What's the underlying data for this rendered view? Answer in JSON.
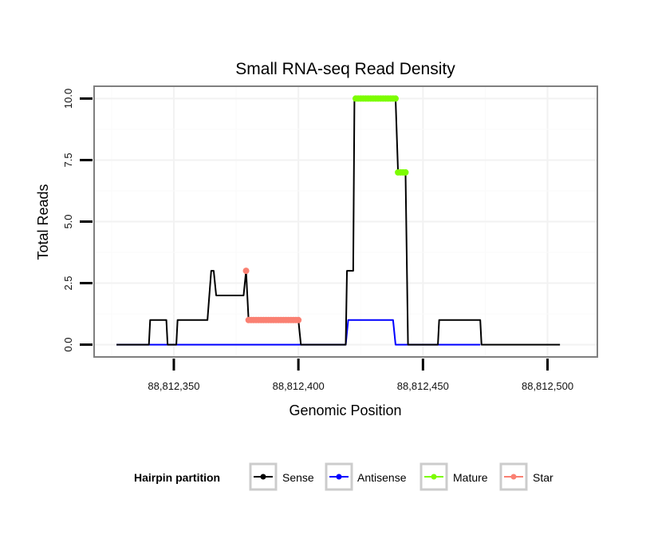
{
  "chart_data": {
    "type": "line",
    "title": "Small RNA-seq Read Density",
    "xlabel": "Genomic Position",
    "ylabel": "Total Reads",
    "xlim": [
      88812318,
      88812520
    ],
    "ylim": [
      -0.5,
      10.5
    ],
    "x_ticks": [
      88812350,
      88812400,
      88812450,
      88812500
    ],
    "x_tick_labels": [
      "88,812,350",
      "88,812,400",
      "88,812,450",
      "88,812,500"
    ],
    "y_ticks": [
      0,
      2.5,
      5,
      7.5,
      10
    ],
    "y_tick_labels": [
      "0.0",
      "2.5",
      "5.0",
      "7.5",
      "10.0"
    ],
    "grid": true,
    "legend": {
      "title": "Hairpin partition",
      "position": "bottom",
      "entries": [
        {
          "name": "Sense",
          "color": "#000000"
        },
        {
          "name": "Antisense",
          "color": "#0000ff"
        },
        {
          "name": "Mature",
          "color": "#7cfc00"
        },
        {
          "name": "Star",
          "color": "#fa8072"
        }
      ]
    },
    "series": [
      {
        "name": "Sense",
        "color": "#000000",
        "points": [
          [
            88812327,
            0
          ],
          [
            88812340,
            0
          ],
          [
            88812340.5,
            1
          ],
          [
            88812347,
            1
          ],
          [
            88812347.5,
            0
          ],
          [
            88812351,
            0
          ],
          [
            88812351.5,
            1
          ],
          [
            88812363.5,
            1
          ],
          [
            88812365,
            3
          ],
          [
            88812366,
            3
          ],
          [
            88812367,
            2
          ],
          [
            88812378,
            2
          ],
          [
            88812379,
            3
          ],
          [
            88812380,
            1
          ],
          [
            88812400,
            1
          ],
          [
            88812401,
            0
          ],
          [
            88812419,
            0
          ],
          [
            88812419.5,
            3
          ],
          [
            88812422,
            3
          ],
          [
            88812422.5,
            10
          ],
          [
            88812439,
            10
          ],
          [
            88812440,
            7
          ],
          [
            88812443,
            7
          ],
          [
            88812444,
            0
          ],
          [
            88812456,
            0
          ],
          [
            88812456.5,
            1
          ],
          [
            88812473,
            1
          ],
          [
            88812473.5,
            0
          ],
          [
            88812505,
            0
          ]
        ]
      },
      {
        "name": "Antisense",
        "color": "#0000ff",
        "points": [
          [
            88812327,
            0
          ],
          [
            88812419,
            0
          ],
          [
            88812420,
            1
          ],
          [
            88812438,
            1
          ],
          [
            88812439,
            0
          ],
          [
            88812473,
            0
          ]
        ]
      },
      {
        "name": "Mature",
        "color": "#7cfc00",
        "x": [
          88812423,
          88812424,
          88812425,
          88812426,
          88812427,
          88812428,
          88812429,
          88812430,
          88812431,
          88812432,
          88812433,
          88812434,
          88812435,
          88812436,
          88812437,
          88812438,
          88812439,
          88812440,
          88812441,
          88812442,
          88812443
        ],
        "y": [
          10,
          10,
          10,
          10,
          10,
          10,
          10,
          10,
          10,
          10,
          10,
          10,
          10,
          10,
          10,
          10,
          10,
          7,
          7,
          7,
          7
        ]
      },
      {
        "name": "Star",
        "color": "#fa8072",
        "x": [
          88812379,
          88812380,
          88812381,
          88812382,
          88812383,
          88812384,
          88812385,
          88812386,
          88812387,
          88812388,
          88812389,
          88812390,
          88812391,
          88812392,
          88812393,
          88812394,
          88812395,
          88812396,
          88812397,
          88812398,
          88812399,
          88812400
        ],
        "y": [
          3,
          1,
          1,
          1,
          1,
          1,
          1,
          1,
          1,
          1,
          1,
          1,
          1,
          1,
          1,
          1,
          1,
          1,
          1,
          1,
          1,
          1
        ]
      }
    ]
  }
}
